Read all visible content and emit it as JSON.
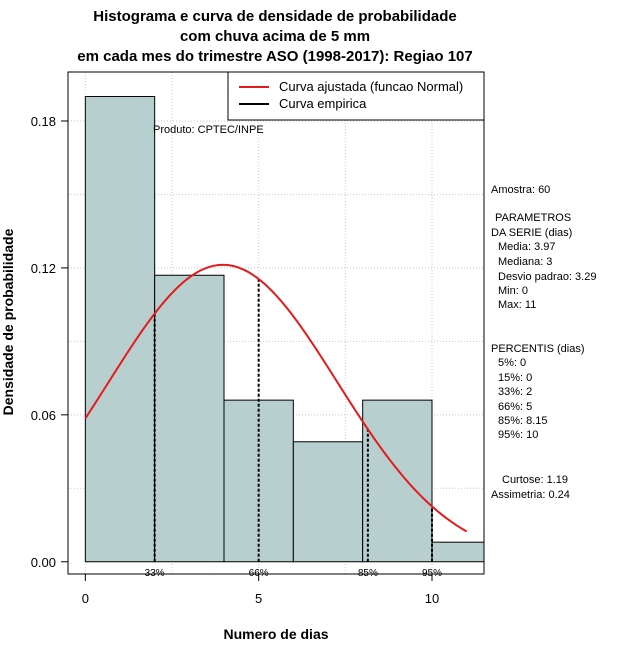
{
  "chart_data": {
    "type": "bar",
    "title_lines": [
      "Histograma e curva de densidade de probabilidade",
      "com chuva acima de 5 mm",
      "em cada mes do trimestre ASO (1998-2017): Regiao 107"
    ],
    "xlabel": "Numero de dias",
    "ylabel": "Densidade de probabilidade",
    "xlim": [
      -0.5,
      11.5
    ],
    "ylim": [
      -0.005,
      0.2
    ],
    "xticks": [
      0,
      5,
      10
    ],
    "yticks": [
      0.0,
      0.06,
      0.12,
      0.18
    ],
    "ytick_labels": [
      "0.00",
      "0.06",
      "0.12",
      "0.18"
    ],
    "grid": true,
    "bins": [
      {
        "start": 0,
        "end": 2,
        "density": 0.19
      },
      {
        "start": 2,
        "end": 4,
        "density": 0.117
      },
      {
        "start": 4,
        "end": 6,
        "density": 0.066
      },
      {
        "start": 6,
        "end": 8,
        "density": 0.049
      },
      {
        "start": 8,
        "end": 10,
        "density": 0.066
      },
      {
        "start": 10,
        "end": 12,
        "density": 0.008
      }
    ],
    "normal_curve": {
      "mean": 3.97,
      "sd": 3.29,
      "x_from": 0,
      "x_to": 11,
      "color": "#e41a1c"
    },
    "bar_fill": "#b7cfcf",
    "percentile_lines": [
      {
        "x": 2,
        "label": "33%"
      },
      {
        "x": 5,
        "label": "66%"
      },
      {
        "x": 8.15,
        "label": "85%"
      },
      {
        "x": 10,
        "label": "95%"
      }
    ],
    "legend": [
      {
        "label": "Curva ajustada (funcao Normal)",
        "color": "#e41a1c"
      },
      {
        "label": "Curva empirica",
        "color": "#000000"
      }
    ],
    "legend_position": "top-right",
    "source_note": "Produto: CPTEC/INPE",
    "stats": {
      "amostra": "Amostra: 60",
      "param_title_1": "PARAMETROS",
      "param_title_2": "DA SERIE (dias)",
      "media": "Media: 3.97",
      "mediana": "Mediana: 3",
      "desvio": "Desvio padrao: 3.29",
      "min": "Min: 0",
      "max": "Max: 11",
      "perc_title": "PERCENTIS (dias)",
      "p5": "5%: 0",
      "p15": "15%: 0",
      "p33": "33%: 2",
      "p66": "66%: 5",
      "p85": "85%: 8.15",
      "p95": "95%: 10",
      "curtose": "Curtose: 1.19",
      "assimetria": "Assimetria: 0.24"
    }
  }
}
